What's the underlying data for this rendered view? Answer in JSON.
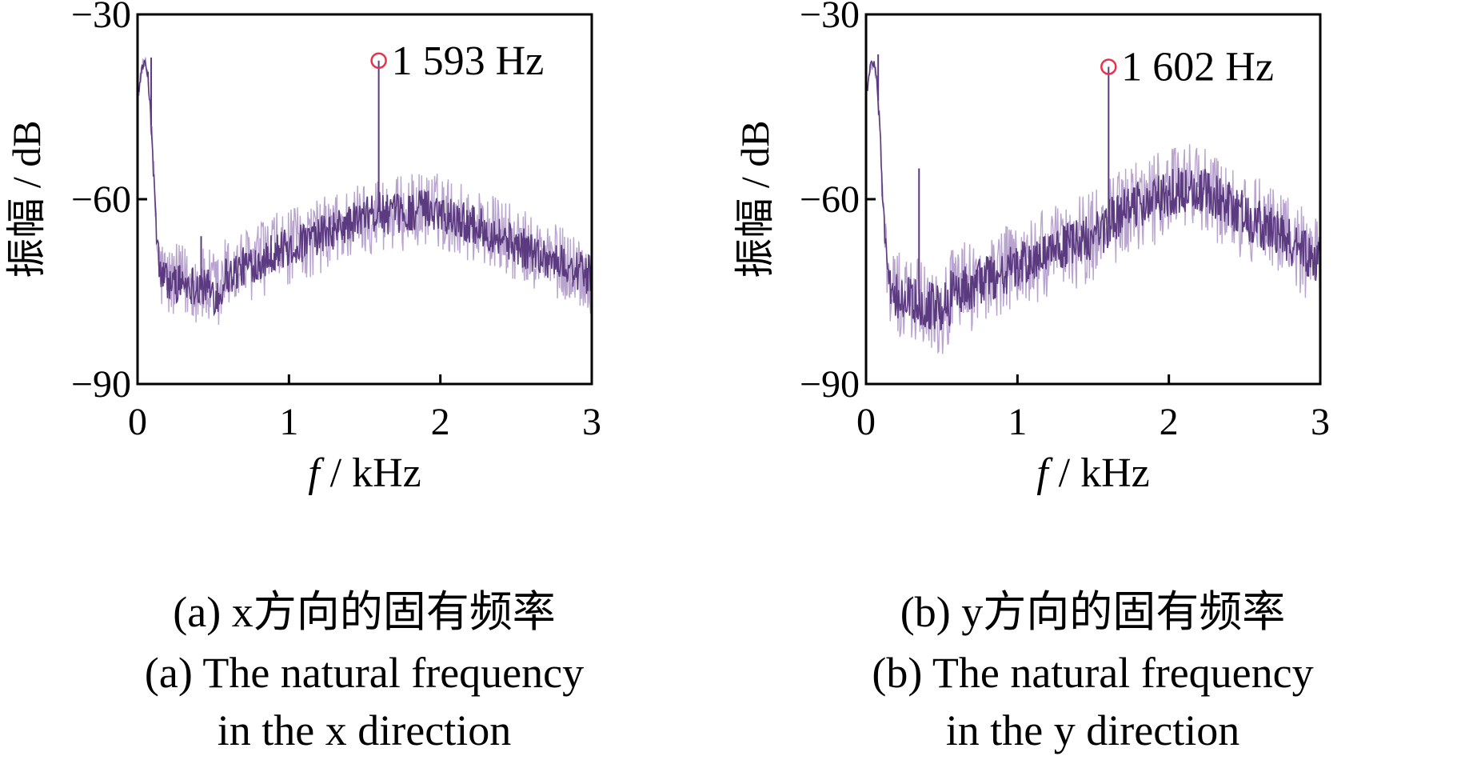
{
  "chart_data": [
    {
      "type": "line",
      "panel_label": "(a)",
      "caption_zh": "(a)  x方向的固有频率",
      "caption_en_line1": "(a)  The natural frequency",
      "caption_en_line2": "in the x direction",
      "xlabel_var": "f",
      "xlabel_unit": " / kHz",
      "ylabel": "振幅 / dB",
      "xlim": [
        0,
        3
      ],
      "ylim": [
        -90,
        -30
      ],
      "xticks": [
        0,
        1,
        2,
        3
      ],
      "xtick_labels": [
        "0",
        "1",
        "2",
        "3"
      ],
      "yticks": [
        -90,
        -60,
        -30
      ],
      "ytick_labels": [
        "−90",
        "−60",
        "−30"
      ],
      "grid": false,
      "series": [
        {
          "color": "#5b3a80",
          "band_color": "#b9a3cf",
          "envelope": {
            "x": [
              0.01,
              0.03,
              0.05,
              0.07,
              0.09,
              0.11,
              0.13,
              0.15,
              0.2,
              0.3,
              0.4,
              0.5,
              0.55,
              0.57,
              0.6,
              0.7,
              0.8,
              0.9,
              1.0,
              1.1,
              1.2,
              1.3,
              1.4,
              1.5,
              1.55,
              1.6,
              1.65,
              1.7,
              1.8,
              1.9,
              2.0,
              2.1,
              2.2,
              2.3,
              2.4,
              2.5,
              2.6,
              2.7,
              2.8,
              2.9,
              3.0
            ],
            "mean": [
              -42,
              -38.5,
              -38,
              -40,
              -48,
              -58,
              -68,
              -72,
              -73.5,
              -73.5,
              -74,
              -75,
              -76,
              -72,
              -72.5,
              -71,
              -70,
              -68.5,
              -68,
              -67,
              -66,
              -65,
              -64,
              -63,
              -62.5,
              -62,
              -62.5,
              -62.5,
              -62,
              -61.5,
              -62,
              -63,
              -64,
              -65,
              -66,
              -67.5,
              -68.5,
              -69.5,
              -70.5,
              -71.5,
              -72.5
            ],
            "spread": [
              1,
              1,
              1,
              1.5,
              2,
              3,
              4,
              5,
              5,
              5,
              5,
              5.5,
              6,
              5,
              5,
              5,
              5,
              5,
              5,
              5,
              5,
              5,
              5,
              5,
              5,
              5,
              5,
              5,
              5,
              5,
              5,
              5,
              5,
              5,
              5,
              5,
              5,
              5,
              5,
              5,
              5
            ]
          },
          "spikes": [
            {
              "x": 0.09,
              "y": -37
            },
            {
              "x": 0.42,
              "y": -66
            },
            {
              "x": 1.593,
              "y": -37.5
            }
          ]
        }
      ],
      "annotations": [
        {
          "x": 1.593,
          "y": -37.5,
          "text": "1 593 Hz",
          "marker": "circle",
          "marker_color": "#e8314a"
        }
      ]
    },
    {
      "type": "line",
      "panel_label": "(b)",
      "caption_zh": "(b)  y方向的固有频率",
      "caption_en_line1": "(b)  The natural frequency",
      "caption_en_line2": "in the y direction",
      "xlabel_var": "f",
      "xlabel_unit": " / kHz",
      "ylabel": "振幅 / dB",
      "xlim": [
        0,
        3
      ],
      "ylim": [
        -90,
        -30
      ],
      "xticks": [
        0,
        1,
        2,
        3
      ],
      "xtick_labels": [
        "0",
        "1",
        "2",
        "3"
      ],
      "yticks": [
        -90,
        -60,
        -30
      ],
      "ytick_labels": [
        "−90",
        "−60",
        "−30"
      ],
      "grid": false,
      "series": [
        {
          "color": "#5b3a80",
          "band_color": "#b9a3cf",
          "envelope": {
            "x": [
              0.01,
              0.03,
              0.05,
              0.07,
              0.09,
              0.11,
              0.13,
              0.15,
              0.2,
              0.3,
              0.4,
              0.5,
              0.55,
              0.57,
              0.6,
              0.7,
              0.8,
              0.9,
              1.0,
              1.1,
              1.2,
              1.3,
              1.4,
              1.5,
              1.55,
              1.6,
              1.65,
              1.7,
              1.8,
              1.9,
              2.0,
              2.1,
              2.2,
              2.3,
              2.4,
              2.5,
              2.6,
              2.7,
              2.8,
              2.9,
              3.0
            ],
            "mean": [
              -42,
              -38,
              -38,
              -40,
              -48,
              -60,
              -68,
              -74,
              -76,
              -76,
              -77,
              -78,
              -77,
              -74,
              -75,
              -74,
              -73,
              -72,
              -71,
              -70,
              -69,
              -68,
              -67,
              -66,
              -65.5,
              -64,
              -63,
              -62,
              -61,
              -60,
              -59,
              -58.5,
              -58.5,
              -59.5,
              -61,
              -62.5,
              -64,
              -65.5,
              -67,
              -68.5,
              -70
            ],
            "spread": [
              1,
              1,
              1,
              1.5,
              2,
              3,
              4,
              5,
              6,
              6,
              6,
              6.5,
              6.5,
              6,
              6,
              6,
              6,
              6,
              6,
              6,
              6,
              6,
              6,
              6,
              6,
              6,
              6,
              6,
              6,
              6,
              6,
              6,
              6,
              6,
              6,
              6,
              6,
              6,
              6,
              6,
              6
            ]
          },
          "spikes": [
            {
              "x": 0.08,
              "y": -36.5
            },
            {
              "x": 0.35,
              "y": -55
            },
            {
              "x": 1.602,
              "y": -38.5
            }
          ]
        }
      ],
      "annotations": [
        {
          "x": 1.602,
          "y": -38.5,
          "text": "1 602 Hz",
          "marker": "circle",
          "marker_color": "#e8314a"
        }
      ]
    }
  ]
}
